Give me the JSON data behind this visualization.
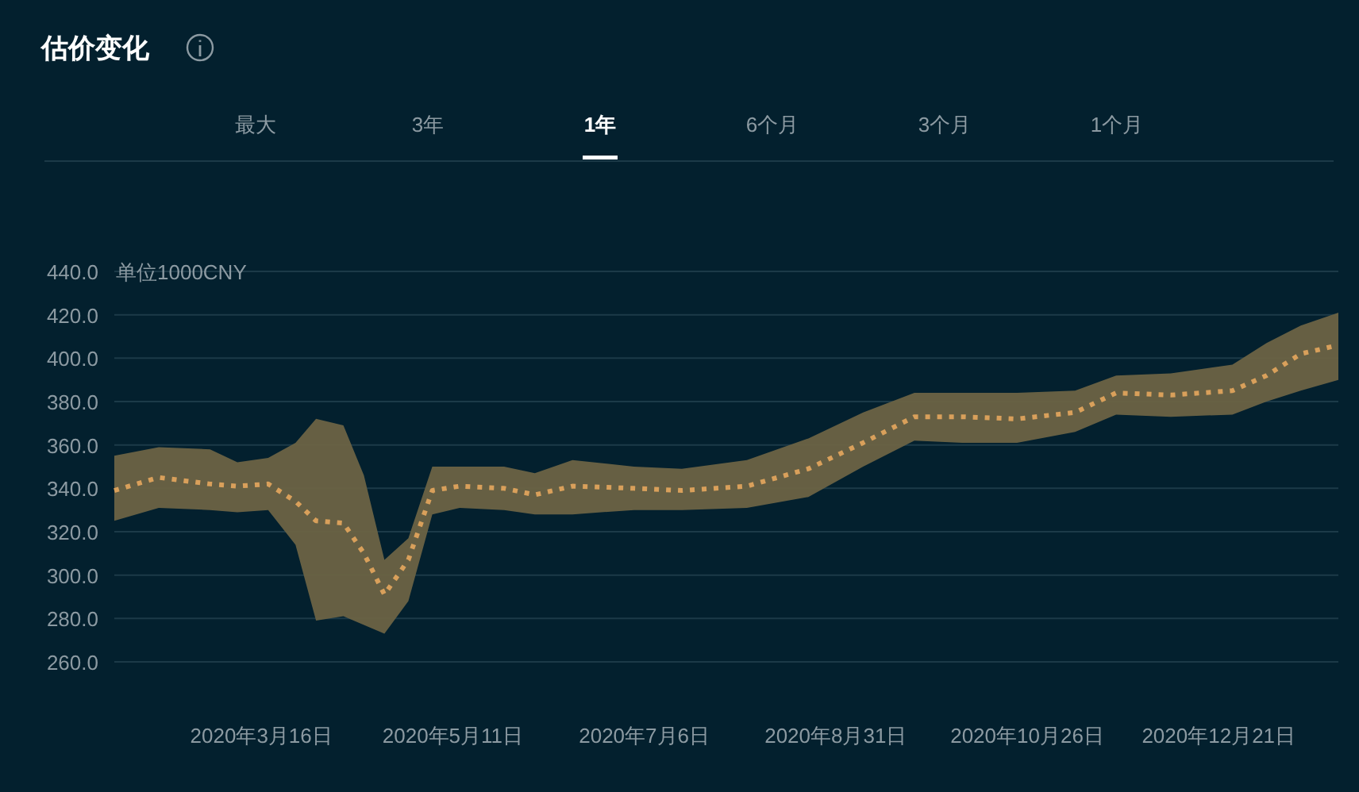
{
  "chart_data": {
    "type": "line",
    "title": "估价变化",
    "ylabel": "单位1000CNY",
    "annotations": [
      "最大",
      "3年",
      "1年",
      "6个月",
      "3个月",
      "1个月"
    ],
    "x": [
      "2020-02-02",
      "2020-02-15",
      "2020-03-01",
      "2020-03-09",
      "2020-03-18",
      "2020-03-26",
      "2020-04-01",
      "2020-04-09",
      "2020-04-15",
      "2020-04-21",
      "2020-04-28",
      "2020-05-05",
      "2020-05-13",
      "2020-05-26",
      "2020-06-04",
      "2020-06-15",
      "2020-07-03",
      "2020-07-17",
      "2020-08-05",
      "2020-08-23",
      "2020-09-08",
      "2020-09-23",
      "2020-10-07",
      "2020-10-23",
      "2020-11-09",
      "2020-11-21",
      "2020-12-07",
      "2020-12-25",
      "2021-01-04",
      "2021-01-14",
      "2021-01-25"
    ],
    "series": [
      {
        "color": "#d9a05b",
        "line_style": "dotted",
        "values": [
          339,
          345,
          342,
          341,
          342,
          334,
          325,
          324,
          310,
          291,
          307,
          339,
          341,
          340,
          337,
          341,
          340,
          339,
          341,
          349,
          361,
          373,
          373,
          372,
          375,
          384,
          383,
          385,
          392,
          402,
          406
        ],
        "upper": [
          355,
          359,
          358,
          352,
          354,
          361,
          372,
          369,
          346,
          307,
          317,
          350,
          350,
          350,
          347,
          353,
          350,
          349,
          353,
          363,
          375,
          384,
          384,
          384,
          385,
          392,
          393,
          397,
          407,
          415,
          421
        ],
        "lower": [
          325,
          331,
          330,
          329,
          330,
          314,
          279,
          281,
          277,
          273,
          288,
          328,
          331,
          330,
          328,
          328,
          330,
          330,
          331,
          336,
          350,
          362,
          361,
          361,
          366,
          374,
          373,
          374,
          380,
          385,
          390
        ]
      }
    ],
    "xlim": [
      "2020-02-02",
      "2021-01-25"
    ],
    "xticks": [
      {
        "value": "2020-03-16",
        "label": "2020年3月16日"
      },
      {
        "value": "2020-05-11",
        "label": "2020年5月11日"
      },
      {
        "value": "2020-07-06",
        "label": "2020年7月6日"
      },
      {
        "value": "2020-08-31",
        "label": "2020年8月31日"
      },
      {
        "value": "2020-10-26",
        "label": "2020年10月26日"
      },
      {
        "value": "2020-12-21",
        "label": "2020年12月21日"
      }
    ],
    "ylim": [
      260,
      440
    ],
    "yticks": [
      {
        "value": 260,
        "label": "260.0"
      },
      {
        "value": 280,
        "label": "280.0"
      },
      {
        "value": 300,
        "label": "300.0"
      },
      {
        "value": 320,
        "label": "320.0"
      },
      {
        "value": 340,
        "label": "340.0"
      },
      {
        "value": 360,
        "label": "360.0"
      },
      {
        "value": 380,
        "label": "380.0"
      },
      {
        "value": 400,
        "label": "400.0"
      },
      {
        "value": 420,
        "label": "420.0"
      },
      {
        "value": 440,
        "label": "440.0"
      }
    ],
    "grid": "y"
  }
}
